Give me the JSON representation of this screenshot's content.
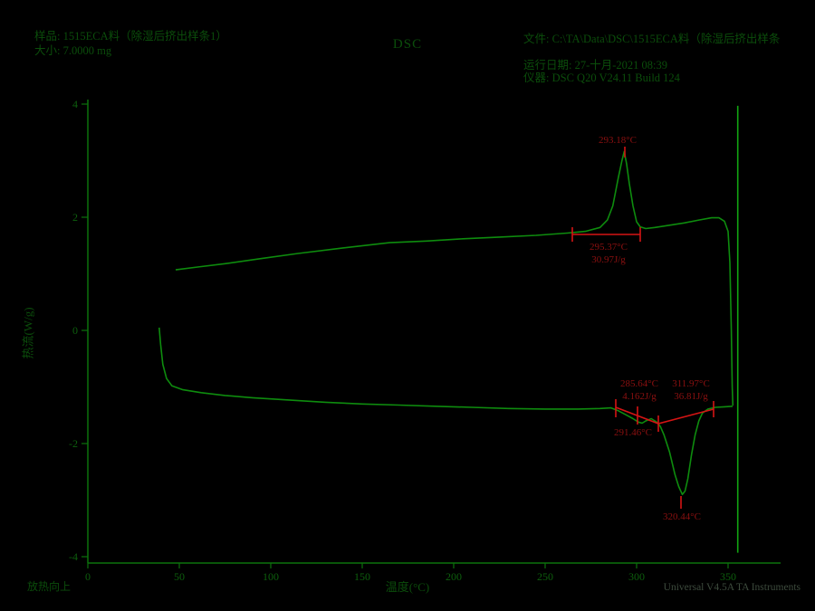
{
  "header": {
    "sample_line": "样品: 1515ECA料（除湿后挤出样条1）",
    "size_line": "大小: 7.0000 mg",
    "method_title": "DSC",
    "file_line": "文件: C:\\TA\\Data\\DSC\\1515ECA料（除湿后挤出样条",
    "rundate_line": "运行日期: 27-十月-2021 08:39",
    "instrument_line": "仪器: DSC Q20 V24.11 Build 124"
  },
  "footer": {
    "exo_label": "放热向上",
    "watermark": "Universal V4.5A TA Instruments"
  },
  "colors": {
    "background": "#000000",
    "curve_green": "#0e8c0e",
    "spike_green": "#12a412",
    "axis_green": "#0c720c",
    "tick_green": "#0d5f0d",
    "text_green": "#0b4d0b",
    "annotation_red": "#8c1010",
    "marker_red": "#d51414",
    "watermark_gray": "#3d4b3d"
  },
  "chart_data": {
    "type": "line",
    "title": "DSC",
    "xlabel": "温度(°C)",
    "ylabel": "热流(W/g)",
    "xlim": [
      0,
      350
    ],
    "ylim": [
      -4,
      4
    ],
    "xticks": [
      0,
      50,
      100,
      150,
      200,
      250,
      300,
      350
    ],
    "yticks": [
      -4,
      -2,
      0,
      2,
      4
    ],
    "grid": false,
    "legend": "none",
    "annotations": {
      "crystallization_peak": "293.18°C",
      "crystallization_onset": "295.37°C",
      "crystallization_enthalpy": "30.97J/g",
      "melt1_onset": "285.64°C",
      "melt1_enthalpy": "4.162J/g",
      "melt1_peak": "291.46°C",
      "melt2_onset": "311.97°C",
      "melt2_enthalpy": "36.81J/g",
      "melt2_peak": "320.44°C"
    },
    "series": [
      {
        "name": "cooling-scan",
        "color_key": "curve_green",
        "points": [
          [
            48,
            1.07
          ],
          [
            60,
            1.12
          ],
          [
            75,
            1.18
          ],
          [
            95,
            1.27
          ],
          [
            115,
            1.36
          ],
          [
            140,
            1.46
          ],
          [
            165,
            1.55
          ],
          [
            185,
            1.58
          ],
          [
            205,
            1.62
          ],
          [
            225,
            1.65
          ],
          [
            245,
            1.68
          ],
          [
            262,
            1.72
          ],
          [
            272,
            1.75
          ],
          [
            280,
            1.82
          ],
          [
            284,
            1.95
          ],
          [
            287,
            2.2
          ],
          [
            290,
            2.7
          ],
          [
            292,
            3.0
          ],
          [
            293.2,
            3.16
          ],
          [
            294.5,
            2.95
          ],
          [
            296,
            2.6
          ],
          [
            298,
            2.2
          ],
          [
            300,
            1.92
          ],
          [
            302,
            1.83
          ],
          [
            305,
            1.8
          ],
          [
            310,
            1.82
          ],
          [
            318,
            1.86
          ],
          [
            326,
            1.9
          ],
          [
            334,
            1.95
          ],
          [
            341,
            1.99
          ],
          [
            345,
            1.99
          ],
          [
            348,
            1.93
          ],
          [
            350,
            1.75
          ],
          [
            351,
            1.2
          ],
          [
            351.8,
            0.0
          ],
          [
            352.3,
            -1.0
          ],
          [
            352.6,
            -1.33
          ]
        ]
      },
      {
        "name": "heating-scan",
        "color_key": "curve_green",
        "points": [
          [
            39,
            0.05
          ],
          [
            39.8,
            -0.25
          ],
          [
            41,
            -0.6
          ],
          [
            43,
            -0.85
          ],
          [
            46,
            -0.98
          ],
          [
            52,
            -1.05
          ],
          [
            62,
            -1.1
          ],
          [
            75,
            -1.15
          ],
          [
            90,
            -1.19
          ],
          [
            110,
            -1.23
          ],
          [
            130,
            -1.27
          ],
          [
            150,
            -1.3
          ],
          [
            170,
            -1.32
          ],
          [
            190,
            -1.34
          ],
          [
            210,
            -1.36
          ],
          [
            230,
            -1.38
          ],
          [
            250,
            -1.39
          ],
          [
            268,
            -1.39
          ],
          [
            280,
            -1.38
          ],
          [
            286,
            -1.37
          ],
          [
            290,
            -1.42
          ],
          [
            294,
            -1.49
          ],
          [
            298,
            -1.56
          ],
          [
            301,
            -1.62
          ],
          [
            303,
            -1.64
          ],
          [
            305,
            -1.6
          ],
          [
            308,
            -1.56
          ],
          [
            311,
            -1.62
          ],
          [
            313,
            -1.7
          ],
          [
            315,
            -1.85
          ],
          [
            318,
            -2.15
          ],
          [
            321,
            -2.55
          ],
          [
            323,
            -2.76
          ],
          [
            325,
            -2.9
          ],
          [
            326.5,
            -2.84
          ],
          [
            328,
            -2.62
          ],
          [
            330,
            -2.2
          ],
          [
            332,
            -1.85
          ],
          [
            334,
            -1.6
          ],
          [
            336,
            -1.46
          ],
          [
            339,
            -1.39
          ],
          [
            343,
            -1.36
          ],
          [
            348,
            -1.35
          ],
          [
            352.5,
            -1.34
          ]
        ]
      },
      {
        "name": "segment-transient-spike",
        "color_key": "spike_green",
        "points": [
          [
            355.3,
            3.97
          ],
          [
            355.3,
            -3.93
          ]
        ]
      }
    ]
  }
}
